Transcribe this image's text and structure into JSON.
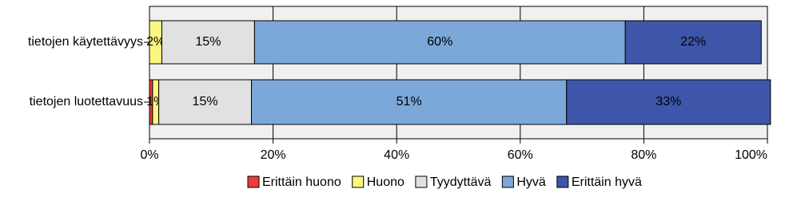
{
  "chart_data": {
    "type": "stacked-barh",
    "categories": [
      "tietojen käytettävyys",
      "tietojen luotettavuus"
    ],
    "series": [
      {
        "name": "Erittäin huono",
        "color": "#ee3a3a",
        "values": [
          0,
          0.5
        ],
        "value_labels": [
          null,
          null
        ]
      },
      {
        "name": "Huono",
        "color": "#fbf680",
        "values": [
          2,
          1
        ],
        "value_labels": [
          "2%",
          "1%"
        ]
      },
      {
        "name": "Tyydyttävä",
        "color": "#e1e1e1",
        "values": [
          15,
          15
        ],
        "value_labels": [
          "15%",
          "15%"
        ]
      },
      {
        "name": "Hyvä",
        "color": "#7ba8d9",
        "values": [
          60,
          51
        ],
        "value_labels": [
          "60%",
          "51%"
        ]
      },
      {
        "name": "Erittäin hyvä",
        "color": "#3e56a9",
        "values": [
          22,
          33
        ],
        "value_labels": [
          "22%",
          "33%"
        ]
      }
    ],
    "xlim": [
      0,
      100
    ],
    "xticks": [
      {
        "value": 0,
        "label": "0%"
      },
      {
        "value": 20,
        "label": "20%"
      },
      {
        "value": 40,
        "label": "40%"
      },
      {
        "value": 60,
        "label": "60%"
      },
      {
        "value": 80,
        "label": "80%"
      },
      {
        "value": 100,
        "label": "100%"
      }
    ],
    "grid": true,
    "legend": "bottom"
  }
}
